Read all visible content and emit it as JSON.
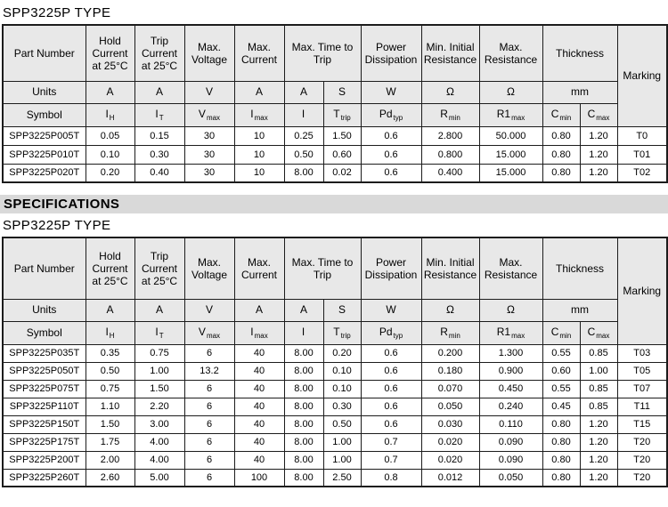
{
  "page": {
    "table1_title": "SPP3225P TYPE",
    "section_header": "SPECIFICATIONS",
    "table2_title": "SPP3225P TYPE"
  },
  "colors": {
    "header_cell_bg": "#e8e8e8",
    "section_bar_bg": "#d9d9d9",
    "border": "#1c1c1c",
    "data_cell_bg": "#ffffff"
  },
  "tables": [
    {
      "title": "SPP3225P TYPE",
      "header": {
        "part_number": "Part Number",
        "hold_current": "Hold Current at 25°C",
        "trip_current": "Trip Current at 25°C",
        "max_voltage": "Max. Voltage",
        "max_current": "Max. Current",
        "max_time_to_trip": "Max. Time to Trip",
        "power_dissipation": "Power Dissipation",
        "min_initial_resistance": "Min. Initial Resistance",
        "max_resistance": "Max. Resistance",
        "thickness": "Thickness",
        "marking": "Marking"
      },
      "units": {
        "label": "Units",
        "values": [
          "A",
          "A",
          "V",
          "A",
          "A",
          "S",
          "W",
          "Ω",
          "Ω",
          "mm"
        ]
      },
      "symbols": {
        "label": "Symbol",
        "values": [
          {
            "base": "I",
            "sub": "H"
          },
          {
            "base": "I",
            "sub": "T"
          },
          {
            "base": "V",
            "sub": "max"
          },
          {
            "base": "I",
            "sub": "max"
          },
          {
            "base": "I",
            "sub": ""
          },
          {
            "base": "T",
            "sub": "trip"
          },
          {
            "base": "Pd",
            "sub": "typ"
          },
          {
            "base": "R",
            "sub": "min"
          },
          {
            "base": "R1",
            "sub": "max"
          },
          {
            "base": "C",
            "sub": "min"
          },
          {
            "base": "C",
            "sub": "max"
          }
        ]
      },
      "rows": [
        [
          "SPP3225P005T",
          "0.05",
          "0.15",
          "30",
          "10",
          "0.25",
          "1.50",
          "0.6",
          "2.800",
          "50.000",
          "0.80",
          "1.20",
          "T0"
        ],
        [
          "SPP3225P010T",
          "0.10",
          "0.30",
          "30",
          "10",
          "0.50",
          "0.60",
          "0.6",
          "0.800",
          "15.000",
          "0.80",
          "1.20",
          "T01"
        ],
        [
          "SPP3225P020T",
          "0.20",
          "0.40",
          "30",
          "10",
          "8.00",
          "0.02",
          "0.6",
          "0.400",
          "15.000",
          "0.80",
          "1.20",
          "T02"
        ]
      ]
    },
    {
      "title": "SPP3225P TYPE",
      "header": {
        "part_number": "Part Number",
        "hold_current": "Hold Current at 25°C",
        "trip_current": "Trip Current at 25°C",
        "max_voltage": "Max. Voltage",
        "max_current": "Max. Current",
        "max_time_to_trip": "Max. Time to Trip",
        "power_dissipation": "Power Dissipation",
        "min_initial_resistance": "Min. Initial Resistance",
        "max_resistance": "Max. Resistance",
        "thickness": "Thickness",
        "marking": "Marking"
      },
      "units": {
        "label": "Units",
        "values": [
          "A",
          "A",
          "V",
          "A",
          "A",
          "S",
          "W",
          "Ω",
          "Ω",
          "mm"
        ]
      },
      "symbols": {
        "label": "Symbol",
        "values": [
          {
            "base": "I",
            "sub": "H"
          },
          {
            "base": "I",
            "sub": "T"
          },
          {
            "base": "V",
            "sub": "max"
          },
          {
            "base": "I",
            "sub": "max"
          },
          {
            "base": "I",
            "sub": ""
          },
          {
            "base": "T",
            "sub": "trip"
          },
          {
            "base": "Pd",
            "sub": "typ"
          },
          {
            "base": "R",
            "sub": "min"
          },
          {
            "base": "R1",
            "sub": "max"
          },
          {
            "base": "C",
            "sub": "min"
          },
          {
            "base": "C",
            "sub": "max"
          }
        ]
      },
      "rows": [
        [
          "SPP3225P035T",
          "0.35",
          "0.75",
          "6",
          "40",
          "8.00",
          "0.20",
          "0.6",
          "0.200",
          "1.300",
          "0.55",
          "0.85",
          "T03"
        ],
        [
          "SPP3225P050T",
          "0.50",
          "1.00",
          "13.2",
          "40",
          "8.00",
          "0.10",
          "0.6",
          "0.180",
          "0.900",
          "0.60",
          "1.00",
          "T05"
        ],
        [
          "SPP3225P075T",
          "0.75",
          "1.50",
          "6",
          "40",
          "8.00",
          "0.10",
          "0.6",
          "0.070",
          "0.450",
          "0.55",
          "0.85",
          "T07"
        ],
        [
          "SPP3225P110T",
          "1.10",
          "2.20",
          "6",
          "40",
          "8.00",
          "0.30",
          "0.6",
          "0.050",
          "0.240",
          "0.45",
          "0.85",
          "T11"
        ],
        [
          "SPP3225P150T",
          "1.50",
          "3.00",
          "6",
          "40",
          "8.00",
          "0.50",
          "0.6",
          "0.030",
          "0.110",
          "0.80",
          "1.20",
          "T15"
        ],
        [
          "SPP3225P175T",
          "1.75",
          "4.00",
          "6",
          "40",
          "8.00",
          "1.00",
          "0.7",
          "0.020",
          "0.090",
          "0.80",
          "1.20",
          "T20"
        ],
        [
          "SPP3225P200T",
          "2.00",
          "4.00",
          "6",
          "40",
          "8.00",
          "1.00",
          "0.7",
          "0.020",
          "0.090",
          "0.80",
          "1.20",
          "T20"
        ],
        [
          "SPP3225P260T",
          "2.60",
          "5.00",
          "6",
          "100",
          "8.00",
          "2.50",
          "0.8",
          "0.012",
          "0.050",
          "0.80",
          "1.20",
          "T20"
        ]
      ]
    }
  ]
}
